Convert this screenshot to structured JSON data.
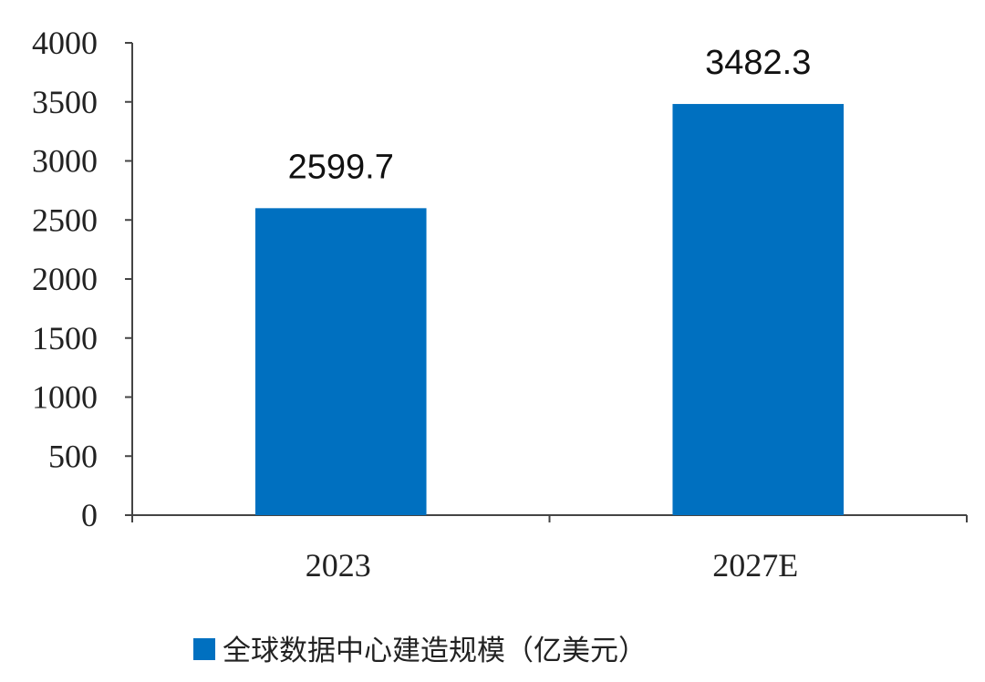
{
  "chart_data": {
    "type": "bar",
    "categories": [
      "2023",
      "2027E"
    ],
    "series": [
      {
        "name": "全球数据中心建造规模（亿美元）",
        "color": "#0070c0",
        "values": [
          2599.7,
          3482.3
        ]
      }
    ],
    "ylim": [
      0,
      4000
    ],
    "yticks": [
      0,
      500,
      1000,
      1500,
      2000,
      2500,
      3000,
      3500,
      4000
    ],
    "grid": false,
    "legend": "bottom"
  }
}
